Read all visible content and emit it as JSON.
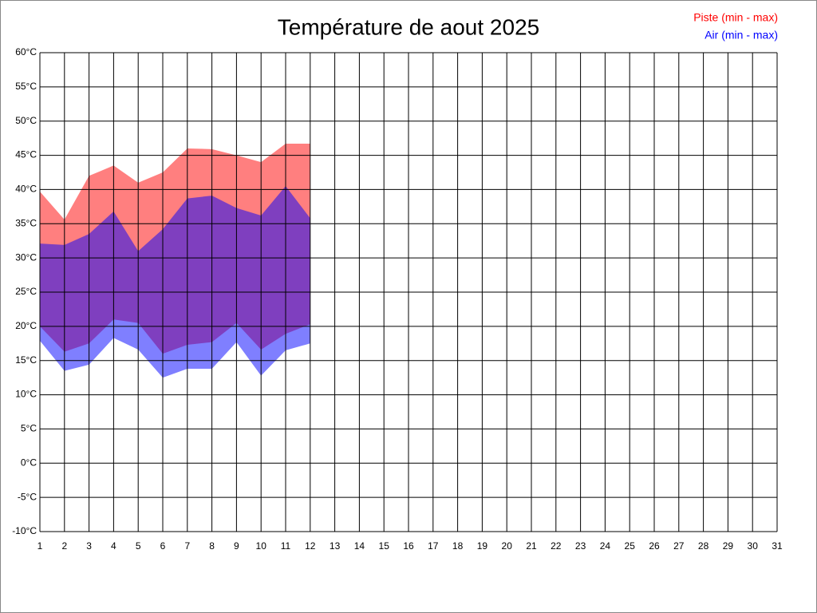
{
  "chart_data": {
    "type": "range-area",
    "title": "Température de aout 2025",
    "x": [
      1,
      2,
      3,
      4,
      5,
      6,
      7,
      8,
      9,
      10,
      11,
      12
    ],
    "series": [
      {
        "name": "Piste (min - max)",
        "color": "#ff0000",
        "min": [
          20,
          16.3,
          17.5,
          21,
          20.5,
          16,
          17.3,
          17.7,
          20.5,
          16.6,
          18.9,
          20.3
        ],
        "max": [
          39.7,
          35.6,
          42,
          43.5,
          41,
          42.5,
          46,
          45.9,
          45,
          44,
          46.7,
          46.7
        ]
      },
      {
        "name": "Air (min - max)",
        "color": "#0000ff",
        "min": [
          17.9,
          13.5,
          14.4,
          18.3,
          16.6,
          12.5,
          13.8,
          13.8,
          17.7,
          12.8,
          16.5,
          17.5
        ],
        "max": [
          32.1,
          31.9,
          33.5,
          36.8,
          31,
          34.2,
          38.7,
          39.1,
          37.3,
          36.2,
          40.5,
          35.8
        ]
      }
    ],
    "xlim": [
      1,
      31
    ],
    "xticks": [
      1,
      2,
      3,
      4,
      5,
      6,
      7,
      8,
      9,
      10,
      11,
      12,
      13,
      14,
      15,
      16,
      17,
      18,
      19,
      20,
      21,
      22,
      23,
      24,
      25,
      26,
      27,
      28,
      29,
      30,
      31
    ],
    "ylim": [
      -10,
      60
    ],
    "yticks": [
      {
        "value": -10,
        "label": "-10°C"
      },
      {
        "value": -5,
        "label": "-5°C"
      },
      {
        "value": 0,
        "label": "0°C"
      },
      {
        "value": 5,
        "label": "5°C"
      },
      {
        "value": 10,
        "label": "10°C"
      },
      {
        "value": 15,
        "label": "15°C"
      },
      {
        "value": 20,
        "label": "20°C"
      },
      {
        "value": 25,
        "label": "25°C"
      },
      {
        "value": 30,
        "label": "30°C"
      },
      {
        "value": 35,
        "label": "35°C"
      },
      {
        "value": 40,
        "label": "40°C"
      },
      {
        "value": 45,
        "label": "45°C"
      },
      {
        "value": 50,
        "label": "50°C"
      },
      {
        "value": 55,
        "label": "55°C"
      },
      {
        "value": 60,
        "label": "60°C"
      }
    ],
    "grid": true,
    "legend": "upper right"
  }
}
